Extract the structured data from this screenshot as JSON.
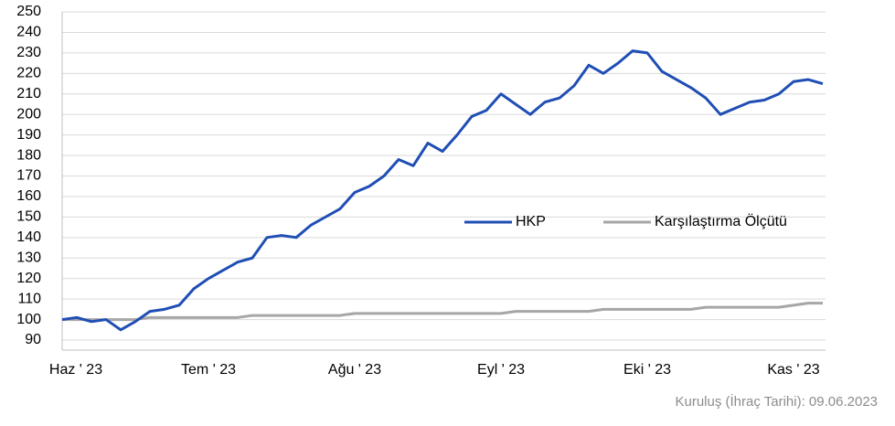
{
  "chart_data": {
    "type": "line",
    "categories": [
      "Haz ' 23",
      null,
      null,
      null,
      null,
      null,
      null,
      null,
      null,
      null,
      "Tem ' 23",
      null,
      null,
      null,
      null,
      null,
      null,
      null,
      null,
      null,
      "Ağu ' 23",
      null,
      null,
      null,
      null,
      null,
      null,
      null,
      null,
      null,
      "Eyl ' 23",
      null,
      null,
      null,
      null,
      null,
      null,
      null,
      null,
      null,
      "Eki ' 23",
      null,
      null,
      null,
      null,
      null,
      null,
      null,
      null,
      null,
      "Kas ' 23",
      null,
      null
    ],
    "series": [
      {
        "name": "HKP",
        "color": "#1f4eb4",
        "values": [
          100,
          101,
          99,
          100,
          95,
          99,
          104,
          105,
          107,
          115,
          120,
          124,
          128,
          130,
          140,
          141,
          140,
          146,
          150,
          154,
          162,
          165,
          170,
          178,
          175,
          186,
          182,
          190,
          199,
          202,
          210,
          205,
          200,
          206,
          208,
          214,
          224,
          220,
          225,
          231,
          230,
          221,
          217,
          213,
          208,
          200,
          203,
          206,
          207,
          210,
          216,
          217,
          215
        ]
      },
      {
        "name": "Karşılaştırma Ölçütü",
        "color": "#a6a6a6",
        "values": [
          100,
          100,
          100,
          100,
          100,
          100,
          101,
          101,
          101,
          101,
          101,
          101,
          101,
          102,
          102,
          102,
          102,
          102,
          102,
          102,
          103,
          103,
          103,
          103,
          103,
          103,
          103,
          103,
          103,
          103,
          103,
          104,
          104,
          104,
          104,
          104,
          104,
          105,
          105,
          105,
          105,
          105,
          105,
          105,
          106,
          106,
          106,
          106,
          106,
          106,
          107,
          108,
          108
        ]
      }
    ],
    "ylim": [
      90,
      250
    ],
    "yticks": [
      90,
      100,
      110,
      120,
      130,
      140,
      150,
      160,
      170,
      180,
      190,
      200,
      210,
      220,
      230,
      240,
      250
    ],
    "grid": true,
    "footnote": "Kuruluş (İhraç Tarihi): 09.06.2023"
  }
}
